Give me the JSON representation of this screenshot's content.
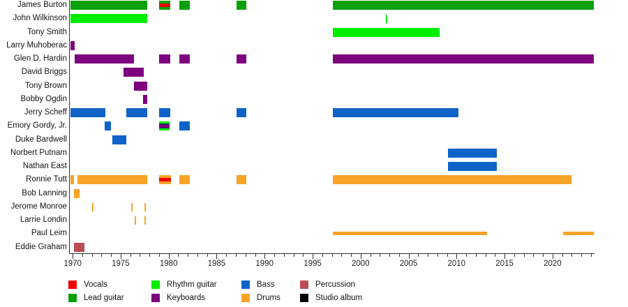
{
  "chart_data": {
    "type": "timeline",
    "description": "Band membership timeline (Gantt-style) with instrument roles by color",
    "x_axis": {
      "min": 1969.7,
      "max": 2024.3,
      "major_ticks": [
        1970,
        1975,
        1980,
        1985,
        1990,
        1995,
        2000,
        2005,
        2010,
        2015,
        2020
      ],
      "minor_step": 1,
      "minor_range": [
        1970,
        2024
      ]
    },
    "colors": {
      "vocals": "#ee0000",
      "lead_guitar": "#0aa00a",
      "rhythm_guitar": "#00ee00",
      "keyboards": "#7d017d",
      "bass": "#0f63c8",
      "drums": "#f7a429",
      "percussion": "#ba4d54",
      "studio_album": "#000000",
      "stripe_dark": "#242a66"
    },
    "legend": [
      {
        "label": "Vocals",
        "role": "vocals"
      },
      {
        "label": "Lead guitar",
        "role": "lead_guitar"
      },
      {
        "label": "Rhythm guitar",
        "role": "rhythm_guitar"
      },
      {
        "label": "Keyboards",
        "role": "keyboards"
      },
      {
        "label": "Bass",
        "role": "bass"
      },
      {
        "label": "Drums",
        "role": "drums"
      },
      {
        "label": "Percussion",
        "role": "percussion"
      },
      {
        "label": "Studio album",
        "role": "studio_album"
      }
    ],
    "members": [
      {
        "name": "James Burton",
        "segments": [
          {
            "from": 1969.8,
            "to": 1977.8,
            "role": "lead_guitar"
          },
          {
            "from": 1979.0,
            "to": 1980.2,
            "stripes": [
              {
                "role": "lead_guitar",
                "w": 4
              },
              {
                "role": "vocals",
                "w": 5
              },
              {
                "role": "lead_guitar",
                "w": 4
              }
            ]
          },
          {
            "from": 1981.1,
            "to": 1982.2,
            "role": "lead_guitar"
          },
          {
            "from": 1987.1,
            "to": 1988.1,
            "role": "lead_guitar"
          },
          {
            "from": 1997.1,
            "to": 2024.3,
            "role": "lead_guitar"
          }
        ]
      },
      {
        "name": "John Wilkinson",
        "segments": [
          {
            "from": 1969.8,
            "to": 1977.8,
            "role": "rhythm_guitar"
          },
          {
            "from": 2002.6,
            "to": 2002.75,
            "role": "rhythm_guitar",
            "tick": true
          }
        ]
      },
      {
        "name": "Tony Smith",
        "segments": [
          {
            "from": 1997.1,
            "to": 2008.2,
            "role": "rhythm_guitar"
          }
        ]
      },
      {
        "name": "Larry Muhoberac",
        "segments": [
          {
            "from": 1969.8,
            "to": 1970.2,
            "role": "keyboards"
          }
        ]
      },
      {
        "name": "Glen D. Hardin",
        "segments": [
          {
            "from": 1970.2,
            "to": 1976.4,
            "role": "keyboards"
          },
          {
            "from": 1979.0,
            "to": 1980.2,
            "role": "keyboards"
          },
          {
            "from": 1981.1,
            "to": 1982.2,
            "role": "keyboards"
          },
          {
            "from": 1987.1,
            "to": 1988.1,
            "role": "keyboards"
          },
          {
            "from": 1997.1,
            "to": 2024.3,
            "role": "keyboards"
          }
        ]
      },
      {
        "name": "David Briggs",
        "segments": [
          {
            "from": 1975.3,
            "to": 1977.4,
            "role": "keyboards"
          }
        ]
      },
      {
        "name": "Tony Brown",
        "segments": [
          {
            "from": 1976.4,
            "to": 1977.8,
            "role": "keyboards"
          }
        ]
      },
      {
        "name": "Bobby Ogdin",
        "segments": [
          {
            "from": 1977.3,
            "to": 1977.8,
            "role": "keyboards"
          }
        ]
      },
      {
        "name": "Jerry Scheff",
        "segments": [
          {
            "from": 1969.8,
            "to": 1973.4,
            "role": "bass"
          },
          {
            "from": 1975.6,
            "to": 1977.8,
            "role": "bass"
          },
          {
            "from": 1979.0,
            "to": 1980.2,
            "role": "bass"
          },
          {
            "from": 1987.1,
            "to": 1988.1,
            "role": "bass"
          },
          {
            "from": 1997.1,
            "to": 2010.2,
            "role": "bass"
          }
        ]
      },
      {
        "name": "Emory Gordy, Jr.",
        "segments": [
          {
            "from": 1973.3,
            "to": 1974.0,
            "role": "bass"
          },
          {
            "from": 1979.0,
            "to": 1980.1,
            "stripes": [
              {
                "role": "rhythm_guitar",
                "w": 3
              },
              {
                "role": "stripe_dark",
                "w": 2
              },
              {
                "role": "keyboards",
                "w": 4
              },
              {
                "role": "stripe_dark",
                "w": 2
              },
              {
                "role": "rhythm_guitar",
                "w": 3
              }
            ]
          },
          {
            "from": 1981.1,
            "to": 1982.2,
            "role": "bass"
          }
        ]
      },
      {
        "name": "Duke Bardwell",
        "segments": [
          {
            "from": 1974.1,
            "to": 1975.6,
            "role": "bass"
          }
        ]
      },
      {
        "name": "Norbert Putnam",
        "segments": [
          {
            "from": 2009.1,
            "to": 2014.2,
            "role": "bass"
          }
        ]
      },
      {
        "name": "Nathan East",
        "segments": [
          {
            "from": 2009.1,
            "to": 2014.2,
            "role": "bass"
          }
        ]
      },
      {
        "name": "Ronnie Tutt",
        "segments": [
          {
            "from": 1969.8,
            "to": 1970.15,
            "role": "drums"
          },
          {
            "from": 1970.5,
            "to": 1977.8,
            "role": "drums"
          },
          {
            "from": 1979.0,
            "to": 1980.25,
            "stripes": [
              {
                "role": "drums",
                "w": 4
              },
              {
                "role": "vocals",
                "w": 5
              },
              {
                "role": "drums",
                "w": 4
              }
            ]
          },
          {
            "from": 1981.1,
            "to": 1982.2,
            "role": "drums"
          },
          {
            "from": 1987.1,
            "to": 1988.1,
            "role": "drums"
          },
          {
            "from": 1997.1,
            "to": 2022.0,
            "role": "drums"
          }
        ]
      },
      {
        "name": "Bob Lanning",
        "segments": [
          {
            "from": 1970.15,
            "to": 1970.75,
            "role": "drums"
          }
        ]
      },
      {
        "name": "Jerome Monroe",
        "segments": [
          {
            "from": 1972.0,
            "to": 1972.15,
            "role": "drums",
            "tick": true
          },
          {
            "from": 1976.1,
            "to": 1976.25,
            "role": "drums",
            "tick": true
          },
          {
            "from": 1977.5,
            "to": 1977.65,
            "role": "drums",
            "tick": true
          }
        ]
      },
      {
        "name": "Larrie Londin",
        "segments": [
          {
            "from": 1976.45,
            "to": 1976.6,
            "role": "drums",
            "tick": true
          },
          {
            "from": 1977.5,
            "to": 1977.65,
            "role": "drums",
            "tick": true
          }
        ]
      },
      {
        "name": "Paul Leim",
        "segments": [
          {
            "from": 1997.1,
            "to": 2013.2,
            "role": "drums",
            "thin": true
          },
          {
            "from": 2021.1,
            "to": 2024.3,
            "role": "drums",
            "thin": true
          }
        ]
      },
      {
        "name": "Eddie Graham",
        "segments": [
          {
            "from": 1970.15,
            "to": 1971.25,
            "role": "percussion"
          }
        ]
      }
    ]
  }
}
